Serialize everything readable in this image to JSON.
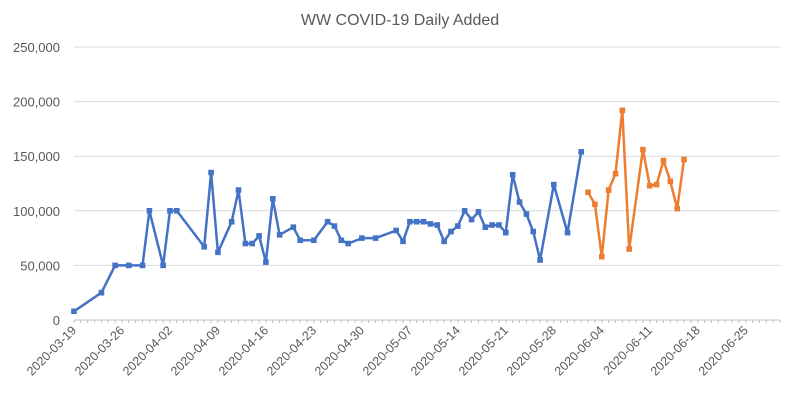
{
  "chart_data": {
    "type": "line",
    "title": "WW COVID-19 Daily Added",
    "xlabel": "",
    "ylabel": "",
    "ylim": [
      0,
      250000
    ],
    "yticks": [
      "0",
      "50,000",
      "100,000",
      "150,000",
      "200,000",
      "250,000"
    ],
    "xticks": [
      "2020-03-19",
      "2020-03-26",
      "2020-04-02",
      "2020-04-09",
      "2020-04-16",
      "2020-04-23",
      "2020-04-30",
      "2020-05-07",
      "2020-05-14",
      "2020-05-21",
      "2020-05-28",
      "2020-06-04",
      "2020-06-11",
      "2020-06-18",
      "2020-06-25"
    ],
    "xlim": [
      "2020-03-19",
      "2020-06-30"
    ],
    "grid": "horizontal",
    "legend": "none",
    "series": [
      {
        "color": "#4472c4",
        "points": [
          [
            "2020-03-19",
            8000
          ],
          [
            "2020-03-23",
            25000
          ],
          [
            "2020-03-25",
            50000
          ],
          [
            "2020-03-27",
            50000
          ],
          [
            "2020-03-29",
            50000
          ],
          [
            "2020-03-30",
            100000
          ],
          [
            "2020-04-01",
            50000
          ],
          [
            "2020-04-02",
            100000
          ],
          [
            "2020-04-03",
            100000
          ],
          [
            "2020-04-07",
            67000
          ],
          [
            "2020-04-08",
            135000
          ],
          [
            "2020-04-09",
            62000
          ],
          [
            "2020-04-11",
            90000
          ],
          [
            "2020-04-12",
            119000
          ],
          [
            "2020-04-13",
            70000
          ],
          [
            "2020-04-14",
            70000
          ],
          [
            "2020-04-15",
            77000
          ],
          [
            "2020-04-16",
            53000
          ],
          [
            "2020-04-17",
            111000
          ],
          [
            "2020-04-18",
            78000
          ],
          [
            "2020-04-20",
            85000
          ],
          [
            "2020-04-21",
            73000
          ],
          [
            "2020-04-23",
            73000
          ],
          [
            "2020-04-25",
            90000
          ],
          [
            "2020-04-26",
            86000
          ],
          [
            "2020-04-27",
            73000
          ],
          [
            "2020-04-28",
            70000
          ],
          [
            "2020-04-30",
            75000
          ],
          [
            "2020-05-02",
            75000
          ],
          [
            "2020-05-05",
            82000
          ],
          [
            "2020-05-06",
            72000
          ],
          [
            "2020-05-07",
            90000
          ],
          [
            "2020-05-08",
            90000
          ],
          [
            "2020-05-09",
            90000
          ],
          [
            "2020-05-10",
            88000
          ],
          [
            "2020-05-11",
            87000
          ],
          [
            "2020-05-12",
            72000
          ],
          [
            "2020-05-13",
            81000
          ],
          [
            "2020-05-14",
            86000
          ],
          [
            "2020-05-15",
            100000
          ],
          [
            "2020-05-16",
            92000
          ],
          [
            "2020-05-17",
            99000
          ],
          [
            "2020-05-18",
            85000
          ],
          [
            "2020-05-19",
            87000
          ],
          [
            "2020-05-20",
            87000
          ],
          [
            "2020-05-21",
            80000
          ],
          [
            "2020-05-22",
            133000
          ],
          [
            "2020-05-23",
            108000
          ],
          [
            "2020-05-24",
            97000
          ],
          [
            "2020-05-25",
            81000
          ],
          [
            "2020-05-26",
            55000
          ],
          [
            "2020-05-28",
            124000
          ],
          [
            "2020-05-30",
            80000
          ],
          [
            "2020-06-01",
            154000
          ]
        ]
      },
      {
        "color": "#ed7d31",
        "points": [
          [
            "2020-06-02",
            117000
          ],
          [
            "2020-06-03",
            106000
          ],
          [
            "2020-06-04",
            58000
          ],
          [
            "2020-06-05",
            119000
          ],
          [
            "2020-06-06",
            134000
          ],
          [
            "2020-06-07",
            192000
          ],
          [
            "2020-06-08",
            65000
          ],
          [
            "2020-06-10",
            156000
          ],
          [
            "2020-06-11",
            123000
          ],
          [
            "2020-06-12",
            124000
          ],
          [
            "2020-06-13",
            146000
          ],
          [
            "2020-06-14",
            127000
          ],
          [
            "2020-06-15",
            102000
          ],
          [
            "2020-06-16",
            147000
          ]
        ]
      }
    ]
  }
}
